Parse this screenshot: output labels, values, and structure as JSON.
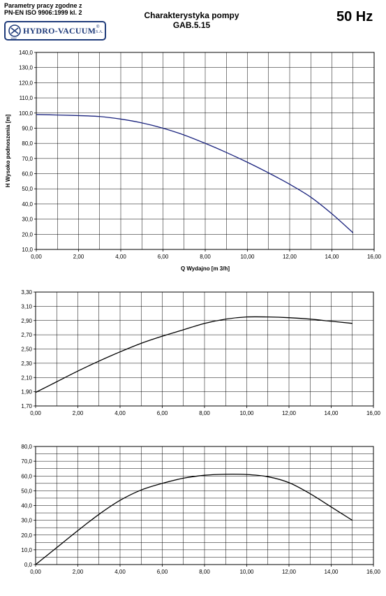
{
  "header": {
    "standard_line1": "Parametry pracy zgodne z",
    "standard_line2": "PN-EN ISO 9906:1999 kl. 2",
    "logo_text": "HYDRO-VACUUM",
    "logo_reg": "®",
    "logo_suffix": "S.A.",
    "logo_year": "1862",
    "title_line1": "Charakterystyka pompy",
    "title_line2": "GAB.5.15",
    "frequency": "50 Hz"
  },
  "colors": {
    "curve_top": "#1a237e",
    "curve": "#000000",
    "grid": "#000000",
    "logo": "#1f3b7a"
  },
  "chart_data": [
    {
      "type": "line",
      "title": "",
      "xlabel": "Q Wydajno [m  3/h]",
      "ylabel": "H  Wysoko podnoszenia [m]",
      "xlim": [
        0,
        16
      ],
      "ylim": [
        10,
        140
      ],
      "xticks": [
        "0,00",
        "2,00",
        "4,00",
        "6,00",
        "8,00",
        "10,00",
        "12,00",
        "14,00",
        "16,00"
      ],
      "yticks": [
        "10,0",
        "20,0",
        "30,0",
        "40,0",
        "50,0",
        "60,0",
        "70,0",
        "80,0",
        "90,0",
        "100,0",
        "110,0",
        "120,0",
        "130,0",
        "140,0"
      ],
      "grid": true,
      "series": [
        {
          "x": [
            0,
            1,
            2,
            3,
            4,
            5,
            6,
            7,
            8,
            9,
            10,
            11,
            12,
            13,
            14,
            15
          ],
          "y": [
            99,
            98.7,
            98.3,
            97.7,
            96,
            93.5,
            90,
            85.5,
            80,
            74,
            67.5,
            60.5,
            53,
            44.5,
            33.5,
            21
          ]
        }
      ]
    },
    {
      "type": "line",
      "title": "",
      "xlabel": "",
      "ylabel": "",
      "xlim": [
        0,
        16
      ],
      "ylim": [
        1.7,
        3.3
      ],
      "xticks": [
        "0,00",
        "2,00",
        "4,00",
        "6,00",
        "8,00",
        "10,00",
        "12,00",
        "14,00",
        "16,00"
      ],
      "yticks": [
        "1,70",
        "1,90",
        "2,10",
        "2,30",
        "2,50",
        "2,70",
        "2,90",
        "3,10",
        "3,30"
      ],
      "grid": true,
      "series": [
        {
          "x": [
            0,
            1,
            2,
            3,
            4,
            5,
            6,
            7,
            8,
            9,
            10,
            11,
            12,
            13,
            14,
            15
          ],
          "y": [
            1.89,
            2.04,
            2.19,
            2.33,
            2.46,
            2.58,
            2.68,
            2.77,
            2.86,
            2.92,
            2.95,
            2.95,
            2.94,
            2.92,
            2.89,
            2.86
          ]
        }
      ]
    },
    {
      "type": "line",
      "title": "",
      "xlabel": "",
      "ylabel": "",
      "xlim": [
        0,
        16
      ],
      "ylim": [
        0,
        80
      ],
      "xticks": [
        "0,00",
        "2,00",
        "4,00",
        "6,00",
        "8,00",
        "10,00",
        "12,00",
        "14,00",
        "16,00"
      ],
      "yticks": [
        "0,0",
        "10,0",
        "20,0",
        "30,0",
        "40,0",
        "50,0",
        "60,0",
        "70,0",
        "80,0"
      ],
      "grid": true,
      "series": [
        {
          "x": [
            0,
            1,
            2,
            3,
            4,
            5,
            6,
            7,
            8,
            9,
            10,
            11,
            12,
            13,
            14,
            15
          ],
          "y": [
            0,
            11.5,
            23,
            34,
            43.5,
            50.5,
            55,
            58.5,
            60.5,
            61.2,
            61,
            59.5,
            55.5,
            48,
            39,
            30
          ]
        }
      ]
    }
  ]
}
